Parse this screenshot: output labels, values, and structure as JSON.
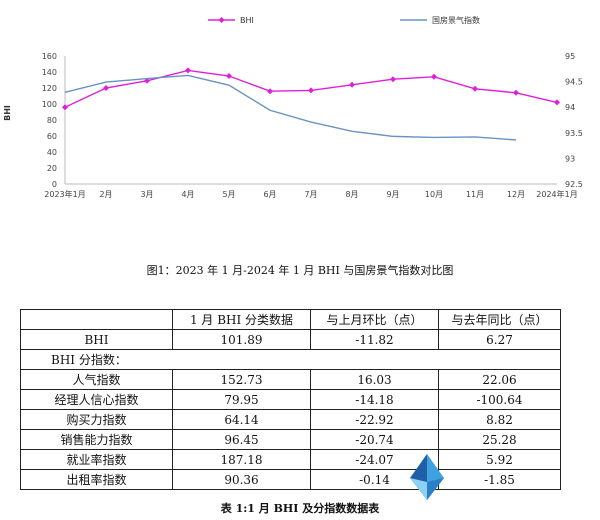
{
  "chart_data": {
    "type": "line",
    "categories": [
      "2023年1月",
      "2月",
      "3月",
      "4月",
      "5月",
      "6月",
      "7月",
      "8月",
      "9月",
      "10月",
      "11月",
      "12月",
      "2024年1月"
    ],
    "series": [
      {
        "name": "BHI",
        "axis": "left",
        "color": "#e020d8",
        "marker": "diamond",
        "values": [
          96,
          120,
          129,
          142,
          135,
          116,
          117,
          124,
          131,
          134,
          119,
          114,
          102
        ]
      },
      {
        "name": "国房景气指数",
        "axis": "right",
        "color": "#6a93c2",
        "marker": "none",
        "values": [
          94.29,
          94.49,
          94.56,
          94.62,
          94.43,
          93.94,
          93.71,
          93.53,
          93.43,
          93.41,
          93.42,
          93.36,
          null
        ]
      }
    ],
    "ylabel": "BHI",
    "ylim": [
      0,
      160
    ],
    "yticks": [
      "0",
      "20",
      "40",
      "60",
      "80",
      "100",
      "120",
      "140",
      "160"
    ],
    "y2lim": [
      92.5,
      95
    ],
    "y2ticks": [
      "92.5",
      "93",
      "93.5",
      "94",
      "94.5",
      "95"
    ],
    "grid": false,
    "legend_placement": "top"
  },
  "figure_caption": "图1：2023 年 1 月-2024 年 1 月 BHI 与国房景气指数对比图",
  "table": {
    "headers": [
      "",
      "1 月 BHI 分类数据",
      "与上月环比（点）",
      "与去年同比（点）"
    ],
    "bhi_row": [
      "BHI",
      "101.89",
      "-11.82",
      "6.27"
    ],
    "sub_title": "BHI 分指数：",
    "rows": [
      [
        "人气指数",
        "152.73",
        "16.03",
        "22.06"
      ],
      [
        "经理人信心指数",
        "79.95",
        "-14.18",
        "-100.64"
      ],
      [
        "购买力指数",
        "64.14",
        "-22.92",
        "8.82"
      ],
      [
        "销售能力指数",
        "96.45",
        "-20.74",
        "25.28"
      ],
      [
        "就业率指数",
        "187.18",
        "-24.07",
        "5.92"
      ],
      [
        "出租率指数",
        "90.36",
        "-0.14",
        "-1.85"
      ]
    ]
  },
  "table_caption": "表 1:1 月 BHI 及分指数数据表"
}
